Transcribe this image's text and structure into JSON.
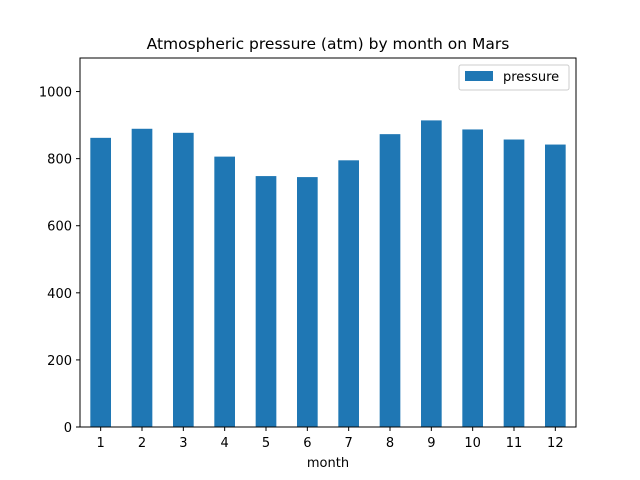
{
  "chart_data": {
    "type": "bar",
    "title": "Atmospheric pressure (atm) by month on Mars",
    "xlabel": "month",
    "ylabel": "",
    "categories": [
      "1",
      "2",
      "3",
      "4",
      "5",
      "6",
      "7",
      "8",
      "9",
      "10",
      "11",
      "12"
    ],
    "series": [
      {
        "name": "pressure",
        "values": [
          862,
          889,
          877,
          806,
          748,
          745,
          795,
          873,
          914,
          887,
          857,
          842
        ],
        "color": "#1f77b4"
      }
    ],
    "ylim": [
      0,
      1100
    ],
    "yticks": [
      0,
      200,
      400,
      600,
      800,
      1000
    ],
    "legend_position": "top-right",
    "grid": false
  }
}
